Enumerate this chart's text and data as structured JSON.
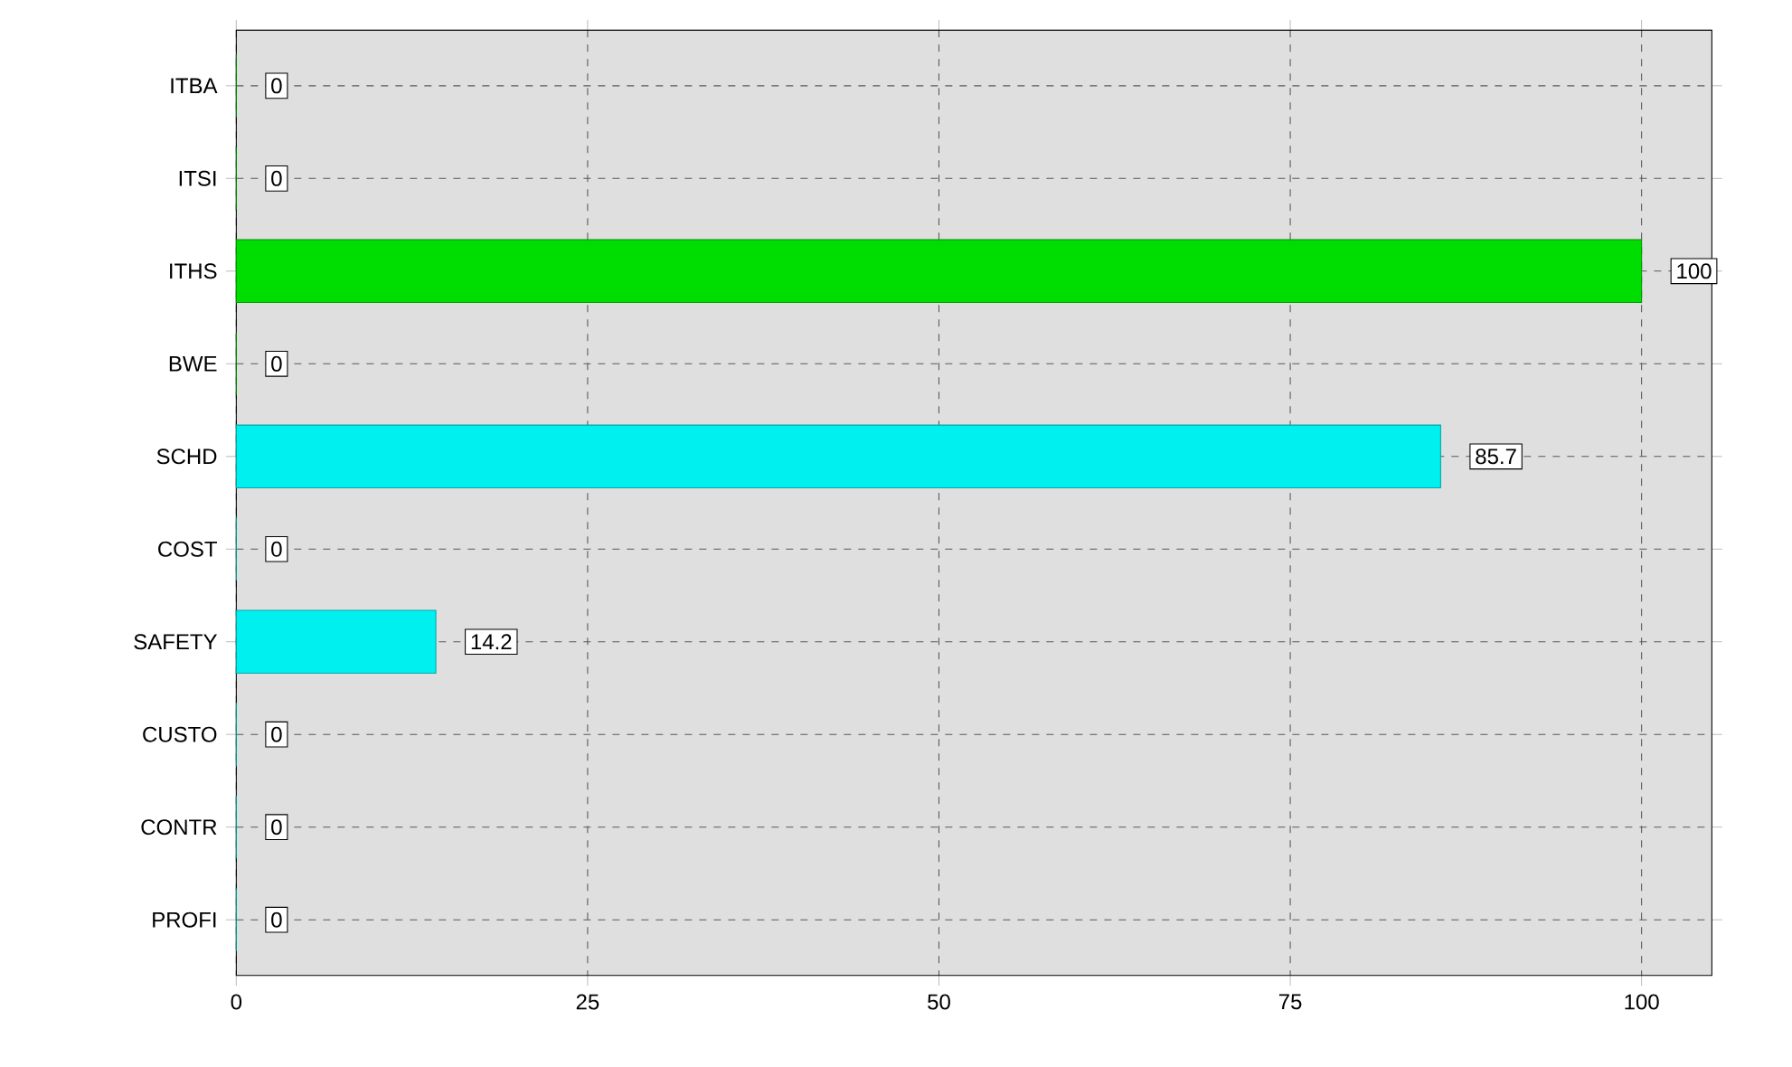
{
  "chart_data": {
    "type": "bar",
    "orientation": "horizontal",
    "categories": [
      "ITBA",
      "ITSI",
      "ITHS",
      "BWE",
      "SCHD",
      "COST",
      "SAFETY",
      "CUSTO",
      "CONTR",
      "PROFI"
    ],
    "values": [
      0,
      0,
      100,
      0,
      85.7,
      0,
      14.2,
      0,
      0,
      0
    ],
    "colors": [
      "#00cc00",
      "#00cc00",
      "#00dd00",
      "#00cc00",
      "#00f0f0",
      "#00f0f0",
      "#00f0f0",
      "#00f0f0",
      "#00f0f0",
      "#00f0f0"
    ],
    "xlim": [
      0,
      105
    ],
    "xticks": [
      0,
      25,
      50,
      75,
      100
    ],
    "grid": true,
    "data_labels": true
  }
}
